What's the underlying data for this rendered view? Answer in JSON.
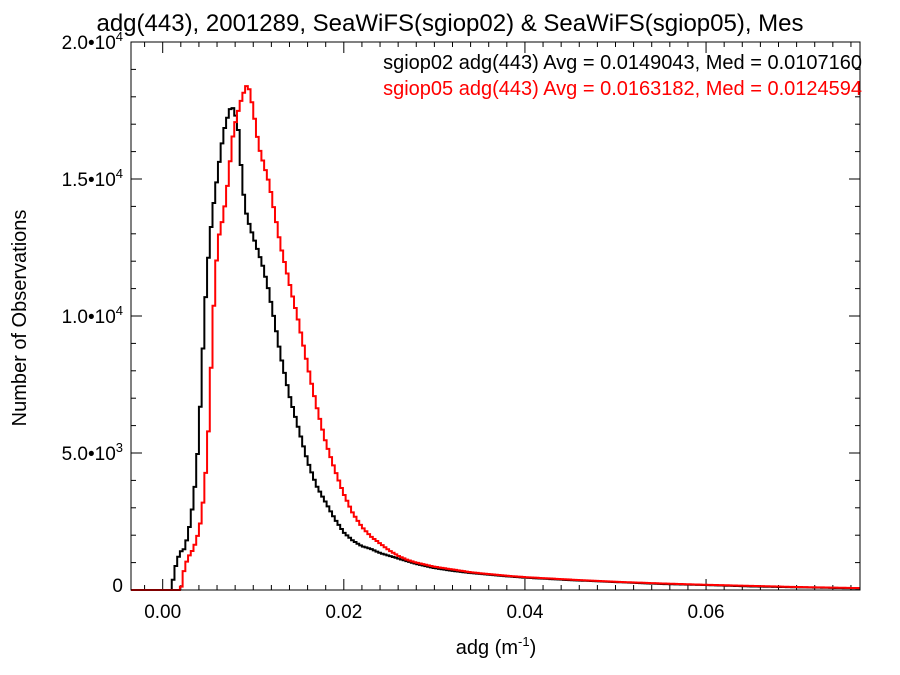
{
  "chart_data": {
    "type": "line",
    "title": "adg(443), 2001289, SeaWiFS(sgiop02) & SeaWiFS(sgiop05), Mes",
    "xlabel": {
      "base": "adg (m",
      "sup": "-1",
      "close": ")"
    },
    "ylabel": "Number of Observations",
    "xlim": [
      -0.0035,
      0.077
    ],
    "ylim": [
      0,
      20000
    ],
    "grid": false,
    "legend_position": "top-right",
    "x_ticks": [
      {
        "value": 0.0,
        "label": "0.00"
      },
      {
        "value": 0.02,
        "label": "0.02"
      },
      {
        "value": 0.04,
        "label": "0.04"
      },
      {
        "value": 0.06,
        "label": "0.06"
      }
    ],
    "y_ticks": [
      {
        "value": 0,
        "base": "0",
        "sup": ""
      },
      {
        "value": 5000,
        "base": "5.0•10",
        "sup": "3"
      },
      {
        "value": 10000,
        "base": "1.0•10",
        "sup": "4"
      },
      {
        "value": 15000,
        "base": "1.5•10",
        "sup": "4"
      },
      {
        "value": 20000,
        "base": "2.0•10",
        "sup": "4"
      }
    ],
    "series": [
      {
        "name": "sgiop02 adg(443) Avg = 0.0149043, Med = 0.0107160",
        "color": "#000000",
        "x": [
          -0.0035,
          0.001,
          0.0012,
          0.0016,
          0.002,
          0.0024,
          0.0028,
          0.0032,
          0.0036,
          0.004,
          0.0044,
          0.0048,
          0.0052,
          0.0056,
          0.006,
          0.0064,
          0.0068,
          0.0072,
          0.0076,
          0.008,
          0.0084,
          0.0088,
          0.0092,
          0.0096,
          0.01,
          0.0104,
          0.011,
          0.0116,
          0.0122,
          0.013,
          0.014,
          0.015,
          0.016,
          0.017,
          0.018,
          0.019,
          0.02,
          0.021,
          0.022,
          0.023,
          0.024,
          0.025,
          0.026,
          0.027,
          0.028,
          0.03,
          0.032,
          0.034,
          0.036,
          0.038,
          0.04,
          0.045,
          0.05,
          0.055,
          0.06,
          0.065,
          0.07,
          0.077
        ],
        "values": [
          0,
          0,
          500,
          1100,
          1400,
          1500,
          2000,
          2800,
          3900,
          5600,
          8500,
          11000,
          12800,
          14000,
          15000,
          16000,
          16800,
          17300,
          17700,
          17400,
          16700,
          14800,
          13800,
          13300,
          12900,
          12500,
          11900,
          11100,
          10100,
          8600,
          7100,
          5900,
          4700,
          3800,
          3200,
          2600,
          2100,
          1800,
          1600,
          1500,
          1350,
          1250,
          1150,
          1050,
          950,
          800,
          700,
          620,
          560,
          500,
          450,
          360,
          290,
          220,
          180,
          130,
          100,
          60
        ]
      },
      {
        "name": "sgiop05 adg(443) Avg = 0.0163182, Med = 0.0124594",
        "color": "#ff0000",
        "x": [
          -0.0035,
          0.002,
          0.0022,
          0.0026,
          0.003,
          0.0034,
          0.0038,
          0.0042,
          0.0046,
          0.005,
          0.0054,
          0.0058,
          0.0062,
          0.0066,
          0.007,
          0.0074,
          0.0078,
          0.0082,
          0.0086,
          0.009,
          0.0094,
          0.0098,
          0.0102,
          0.0106,
          0.0112,
          0.0118,
          0.0124,
          0.013,
          0.014,
          0.015,
          0.016,
          0.017,
          0.018,
          0.019,
          0.02,
          0.021,
          0.022,
          0.023,
          0.024,
          0.025,
          0.026,
          0.027,
          0.028,
          0.03,
          0.032,
          0.034,
          0.036,
          0.038,
          0.04,
          0.045,
          0.05,
          0.055,
          0.06,
          0.065,
          0.07,
          0.077
        ],
        "values": [
          0,
          0,
          500,
          1000,
          1300,
          1500,
          1900,
          2500,
          3600,
          5400,
          8500,
          11500,
          12900,
          13500,
          14300,
          15500,
          16700,
          17300,
          17800,
          18200,
          18500,
          17900,
          17100,
          16200,
          15500,
          14800,
          13700,
          12600,
          11200,
          9800,
          8200,
          6700,
          5400,
          4400,
          3500,
          2800,
          2300,
          1950,
          1700,
          1450,
          1250,
          1100,
          1000,
          850,
          750,
          650,
          580,
          520,
          470,
          380,
          300,
          240,
          190,
          150,
          110,
          70
        ]
      }
    ]
  }
}
